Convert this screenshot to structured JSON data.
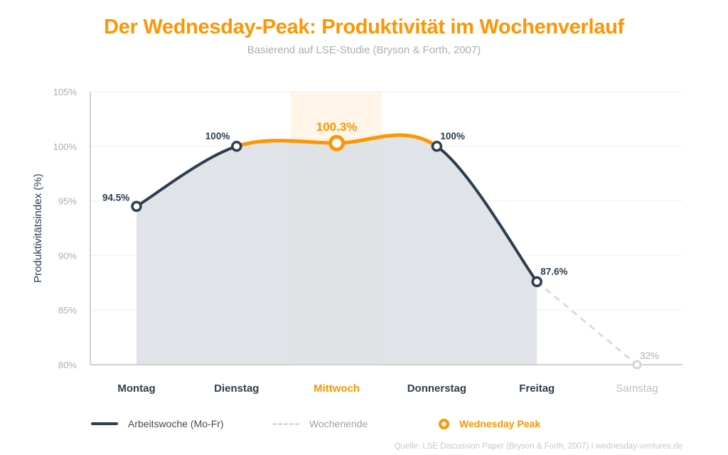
{
  "title": "Der Wednesday-Peak: Produktivität im Wochenverlauf",
  "subtitle": "Basierend auf LSE-Studie (Bryson & Forth, 2007)",
  "source": "Quelle: LSE Discussion Paper (Bryson & Forth, 2007) I wednesday-ventures.de",
  "colors": {
    "accent": "#ff9500",
    "workweek": "#2d3e50",
    "weekend": "#dcdcdc",
    "fill": "#dde1e5",
    "highlight_band": "#fff5e8",
    "axis_text": "#a7b0b3"
  },
  "chart_data": {
    "type": "line",
    "ylabel": "Produktivitätsindex (%)",
    "ylim": [
      80,
      105
    ],
    "yticks": [
      80,
      85,
      90,
      95,
      100,
      105
    ],
    "ytick_labels": [
      "80%",
      "85%",
      "90%",
      "95%",
      "100%",
      "105%"
    ],
    "categories": [
      "Montag",
      "Dienstag",
      "Mittwoch",
      "Donnerstag",
      "Freitag",
      "Samstag"
    ],
    "values": [
      94.5,
      100,
      100.3,
      100,
      87.6,
      32
    ],
    "data_labels": [
      "94.5%",
      "100%",
      "100.3%",
      "100%",
      "87.6%",
      "32%"
    ],
    "highlight_category": "Mittwoch",
    "grid": true,
    "series": [
      {
        "name": "Arbeitswoche (Mo-Fr)",
        "from": "Montag",
        "to": "Freitag",
        "style": "solid"
      },
      {
        "name": "Wochenende",
        "from": "Freitag",
        "to": "Samstag",
        "style": "dashed"
      },
      {
        "name": "Wednesday Peak",
        "from": "Dienstag",
        "to": "Donnerstag",
        "style": "solid-accent"
      }
    ],
    "legend_placement": "bottom"
  },
  "legend": {
    "workweek": "Arbeitswoche (Mo-Fr)",
    "weekend": "Wochenende",
    "peak": "Wednesday Peak"
  }
}
